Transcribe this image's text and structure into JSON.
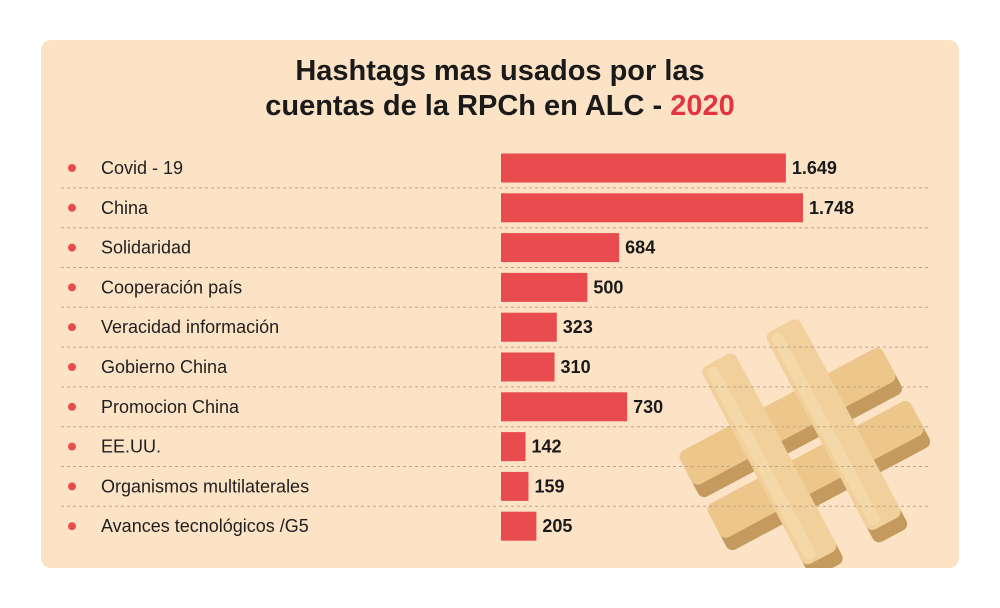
{
  "title": {
    "line1": "Hashtags mas usados por las",
    "line2": "cuentas de la RPCh en ALC - ",
    "year": "2020"
  },
  "colors": {
    "background": "#fce3c6",
    "bar": "#e84c4f",
    "bullet": "#e84c4f",
    "year": "#e4343f"
  },
  "decoration_icon": "hashtag-3d-icon",
  "chart_data": {
    "type": "bar",
    "orientation": "horizontal",
    "categories": [
      "Covid - 19",
      "China",
      "Solidaridad",
      "Cooperación país",
      "Veracidad información",
      "Gobierno China",
      "Promocion China",
      "EE.UU.",
      "Organismos multilaterales",
      "Avances tecnológicos /G5"
    ],
    "values": [
      1649,
      1748,
      684,
      500,
      323,
      310,
      730,
      142,
      159,
      205
    ],
    "value_labels": [
      "1.649",
      "1.748",
      "684",
      "500",
      "323",
      "310",
      "730",
      "142",
      "159",
      "205"
    ],
    "xlim": [
      0,
      1748
    ],
    "grid": "dashed row separators"
  }
}
